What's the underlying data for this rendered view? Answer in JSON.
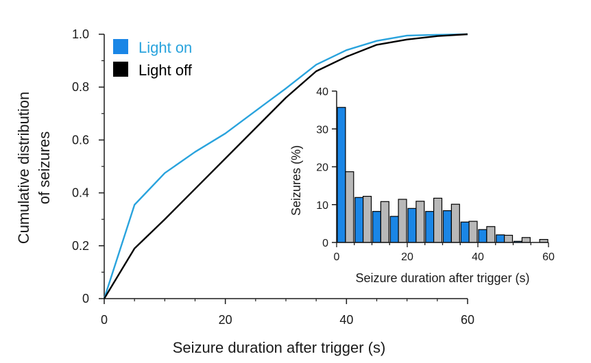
{
  "chart_data": [
    {
      "type": "line",
      "xlabel": "Seizure duration after trigger (s)",
      "ylabel_lines": [
        "Cumulative distribution",
        "of seizures"
      ],
      "xlim": [
        0,
        60
      ],
      "ylim": [
        0,
        1
      ],
      "xticks": [
        0,
        20,
        40,
        60
      ],
      "yticks": [
        0,
        0.2,
        0.4,
        0.6,
        0.8,
        1.0
      ],
      "ytick_labels": [
        "0",
        "0.2",
        "0.4",
        "0.6",
        "0.8",
        "1.0"
      ],
      "grid": false,
      "legend_position": "top-left",
      "series": [
        {
          "name": "Light on",
          "color": "#29a3dd",
          "x": [
            0,
            5,
            10,
            15,
            20,
            25,
            30,
            35,
            40,
            45,
            50,
            55,
            60
          ],
          "y": [
            0,
            0.355,
            0.475,
            0.555,
            0.625,
            0.71,
            0.795,
            0.885,
            0.94,
            0.975,
            0.995,
            0.998,
            1.0
          ]
        },
        {
          "name": "Light off",
          "color": "#000000",
          "x": [
            0,
            5,
            10,
            15,
            20,
            25,
            30,
            35,
            40,
            45,
            50,
            55,
            60
          ],
          "y": [
            0,
            0.19,
            0.3,
            0.415,
            0.53,
            0.645,
            0.76,
            0.86,
            0.915,
            0.96,
            0.98,
            0.993,
            1.0
          ]
        }
      ]
    },
    {
      "type": "bar",
      "xlabel": "Seizure duration after trigger (s)",
      "ylabel": "Seizures (%)",
      "xlim": [
        0,
        60
      ],
      "ylim": [
        0,
        40
      ],
      "xticks": [
        0,
        20,
        40,
        60
      ],
      "yticks": [
        0,
        10,
        20,
        30,
        40
      ],
      "bin_width": 5,
      "grid": false,
      "categories": [
        0,
        5,
        10,
        15,
        20,
        25,
        30,
        35,
        40,
        45,
        50,
        55
      ],
      "series": [
        {
          "name": "Light on",
          "color": "#1a86e6",
          "values": [
            35.7,
            11.9,
            8.2,
            6.9,
            9.0,
            8.2,
            8.4,
            5.4,
            3.4,
            2.0,
            0.3,
            0
          ]
        },
        {
          "name": "Light off",
          "color": "#b8b8b8",
          "values": [
            18.7,
            12.2,
            10.8,
            11.4,
            10.9,
            11.7,
            10.1,
            5.6,
            4.2,
            1.9,
            1.3,
            0.8
          ]
        }
      ]
    }
  ]
}
